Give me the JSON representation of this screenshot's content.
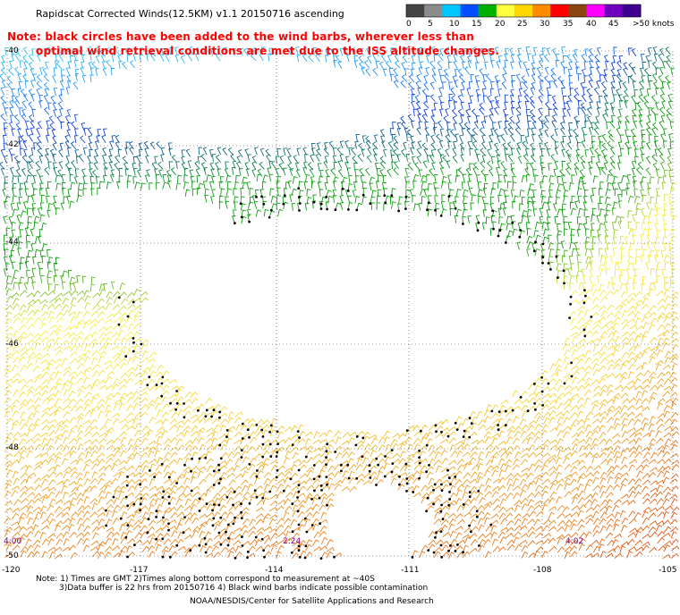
{
  "title": "Rapidscat Corrected Winds(12.5KM) v1.1 20150716 ascending",
  "note_line1": "Note: black circles have been added to the wind barbs, wherever less than",
  "note_line2": "optimal wind retrieval conditions are met due to the ISS altitude changes.",
  "legend": {
    "units": "knots",
    "labels": [
      "0",
      "5",
      "10",
      "15",
      "20",
      "25",
      "30",
      "35",
      "40",
      "45",
      ">50 knots"
    ],
    "colors": [
      "#444444",
      "#8c8c8c",
      "#00c8ff",
      "#0050ff",
      "#00b000",
      "#ffff40",
      "#ffd700",
      "#ff8c00",
      "#ff0000",
      "#8b4513",
      "#ff00ff",
      "#7000c0",
      "#400090"
    ]
  },
  "lat_labels": [
    "-40",
    "-42",
    "-44",
    "-46",
    "-48",
    "-50"
  ],
  "lon_labels": [
    "-120",
    "-117",
    "-114",
    "-111",
    "-108",
    "-105"
  ],
  "times": [
    "4:00",
    "2:24",
    "4:02"
  ],
  "footer": {
    "line1": "Note: 1) Times are GMT 2)Times along bottom correspond to measurement at ~40S",
    "line2": "3)Data buffer is 22 hrs from 20150716 4) Black wind barbs indicate possible contamination",
    "line3": "NOAA/NESDIS/Center for Satellite Applications and Research"
  }
}
